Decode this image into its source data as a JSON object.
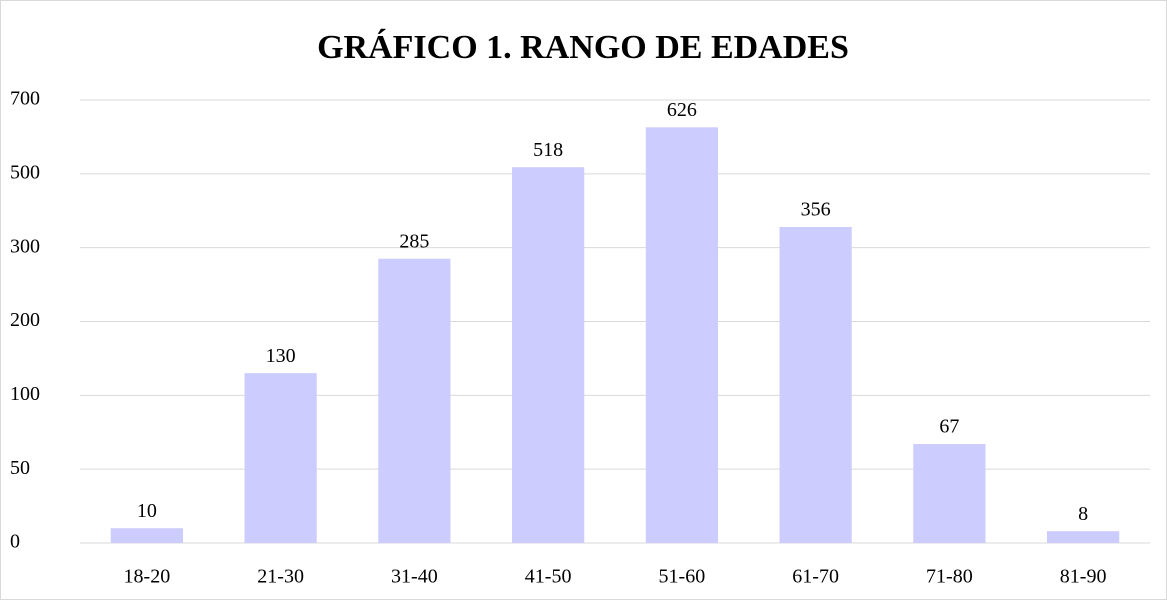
{
  "chart_data": {
    "type": "bar",
    "title": "GRÁFICO 1. RANGO DE EDADES",
    "categories": [
      "18-20",
      "21-30",
      "31-40",
      "41-50",
      "51-60",
      "61-70",
      "71-80",
      "81-90"
    ],
    "values": [
      10,
      130,
      285,
      518,
      626,
      356,
      67,
      8
    ],
    "color": "#ccccff",
    "ylim": [
      0,
      700
    ],
    "yticks": [
      0,
      50,
      100,
      200,
      300,
      500,
      700
    ],
    "grid": true
  }
}
